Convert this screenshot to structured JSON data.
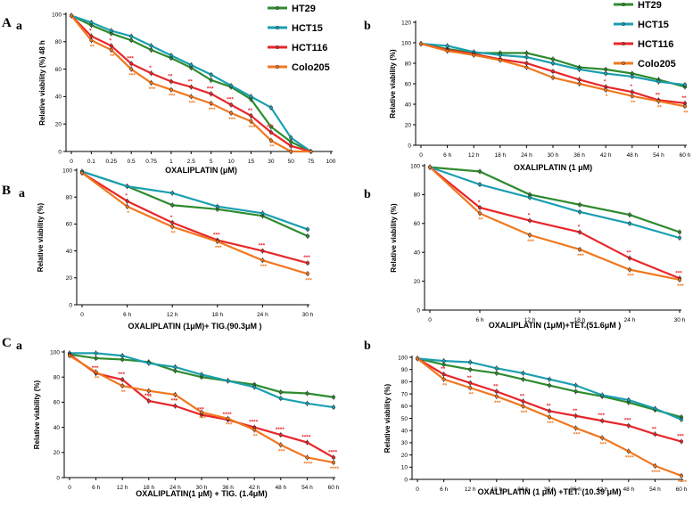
{
  "figure_labels": {
    "A": "A",
    "B": "B",
    "C": "C",
    "a": "a",
    "b": "b"
  },
  "colors": {
    "HT29": "#2e8b2e",
    "HCT15": "#1a9fb0",
    "HCT116": "#e8262a",
    "Colo205": "#f07820"
  },
  "chart_data": [
    {
      "id": "Aa",
      "type": "line",
      "title": "",
      "xlabel": "OXALIPLATIN (μM)",
      "ylabel": "Relative viability (%) 48 h",
      "categories": [
        "0",
        "0.1",
        "0.25",
        "0.5",
        "0.75",
        "1",
        "2.5",
        "5",
        "10",
        "15",
        "30",
        "50",
        "75",
        "100"
      ],
      "ylim": [
        0,
        100
      ],
      "yticks": [
        0,
        20,
        40,
        60,
        80,
        100
      ],
      "legend": [
        "HT29",
        "HCT15",
        "HCT116",
        "Colo205"
      ],
      "series": [
        {
          "name": "HT29",
          "values": [
            99,
            92,
            86,
            81,
            74,
            68,
            61,
            52,
            47,
            38,
            18,
            7,
            0,
            null
          ]
        },
        {
          "name": "HCT15",
          "values": [
            99,
            94,
            88,
            84,
            77,
            70,
            63,
            56,
            48,
            40,
            32,
            10,
            0,
            null
          ]
        },
        {
          "name": "HCT116",
          "values": [
            99,
            84,
            77,
            64,
            57,
            51,
            47,
            42,
            34,
            26,
            14,
            4,
            0,
            null
          ]
        },
        {
          "name": "Colo205",
          "values": [
            99,
            81,
            74,
            60,
            50,
            45,
            40,
            35,
            28,
            22,
            8,
            0,
            0,
            null
          ]
        }
      ],
      "annotations": [
        {
          "series": "HCT116",
          "index": 1,
          "text": "*"
        },
        {
          "series": "Colo205",
          "index": 1,
          "text": "**"
        },
        {
          "series": "HCT116",
          "index": 2,
          "text": "*"
        },
        {
          "series": "Colo205",
          "index": 2,
          "text": "**"
        },
        {
          "series": "HCT116",
          "index": 3,
          "text": "***"
        },
        {
          "series": "Colo205",
          "index": 3,
          "text": "***"
        },
        {
          "series": "HCT116",
          "index": 4,
          "text": "*"
        },
        {
          "series": "Colo205",
          "index": 4,
          "text": "***"
        },
        {
          "series": "HCT116",
          "index": 5,
          "text": "**"
        },
        {
          "series": "Colo205",
          "index": 5,
          "text": "***"
        },
        {
          "series": "HCT116",
          "index": 6,
          "text": "**"
        },
        {
          "series": "Colo205",
          "index": 6,
          "text": "***"
        },
        {
          "series": "HCT116",
          "index": 7,
          "text": "***"
        },
        {
          "series": "Colo205",
          "index": 7,
          "text": "***"
        },
        {
          "series": "HCT116",
          "index": 8,
          "text": "***"
        },
        {
          "series": "Colo205",
          "index": 8,
          "text": "***"
        },
        {
          "series": "HCT116",
          "index": 9,
          "text": "**"
        },
        {
          "series": "Colo205",
          "index": 9,
          "text": "***"
        },
        {
          "series": "HCT116",
          "index": 10,
          "text": "***"
        },
        {
          "series": "Colo205",
          "index": 10,
          "text": "**"
        }
      ]
    },
    {
      "id": "Ab",
      "type": "line",
      "title": "",
      "xlabel": "OXALIPLATIN (1 μM)",
      "ylabel": "Relative viability (%)",
      "categories": [
        "0",
        "6 h",
        "12 h",
        "18 h",
        "24 h",
        "30 h",
        "36 h",
        "42 h",
        "48 h",
        "54 h",
        "60 h"
      ],
      "ylim": [
        0,
        120
      ],
      "yticks": [
        0,
        20,
        40,
        60,
        80,
        100,
        120
      ],
      "legend": [
        "HT29",
        "HCT15",
        "HCT116",
        "Colo205"
      ],
      "series": [
        {
          "name": "HT29",
          "values": [
            99,
            94,
            90,
            90,
            90,
            84,
            76,
            74,
            70,
            64,
            57
          ]
        },
        {
          "name": "HCT15",
          "values": [
            99,
            97,
            91,
            88,
            86,
            80,
            74,
            70,
            67,
            62,
            59
          ]
        },
        {
          "name": "HCT116",
          "values": [
            99,
            93,
            89,
            84,
            80,
            72,
            64,
            57,
            52,
            44,
            41
          ]
        },
        {
          "name": "Colo205",
          "values": [
            99,
            92,
            88,
            83,
            76,
            66,
            60,
            54,
            48,
            43,
            38
          ]
        }
      ],
      "annotations": [
        {
          "series": "HCT116",
          "index": 7,
          "text": "*"
        },
        {
          "series": "Colo205",
          "index": 7,
          "text": "*"
        },
        {
          "series": "HCT116",
          "index": 8,
          "text": "*"
        },
        {
          "series": "Colo205",
          "index": 8,
          "text": "**"
        },
        {
          "series": "HCT116",
          "index": 9,
          "text": "**"
        },
        {
          "series": "Colo205",
          "index": 9,
          "text": "**"
        },
        {
          "series": "HCT116",
          "index": 10,
          "text": "**"
        },
        {
          "series": "Colo205",
          "index": 10,
          "text": "**"
        }
      ]
    },
    {
      "id": "Ba",
      "type": "line",
      "title": "",
      "xlabel": "OXALIPLATIN (1μM)+ TIG.(90.3μM )",
      "ylabel": "Relative viability (%)",
      "categories": [
        "0",
        "6 h",
        "12 h",
        "18 h",
        "24 h",
        "30 h"
      ],
      "ylim": [
        0,
        100
      ],
      "yticks": [
        0,
        20,
        40,
        60,
        80,
        100
      ],
      "legend": [],
      "series": [
        {
          "name": "HT29",
          "values": [
            99,
            88,
            74,
            71,
            66,
            51
          ]
        },
        {
          "name": "HCT15",
          "values": [
            99,
            88,
            83,
            73,
            68,
            56
          ]
        },
        {
          "name": "HCT116",
          "values": [
            98,
            77,
            61,
            48,
            40,
            31
          ]
        },
        {
          "name": "Colo205",
          "values": [
            98,
            73,
            58,
            47,
            33,
            23
          ]
        }
      ],
      "annotations": [
        {
          "series": "HCT116",
          "index": 1,
          "text": "*"
        },
        {
          "series": "Colo205",
          "index": 1,
          "text": "*"
        },
        {
          "series": "HCT116",
          "index": 2,
          "text": "*"
        },
        {
          "series": "Colo205",
          "index": 2,
          "text": "**"
        },
        {
          "series": "HCT116",
          "index": 3,
          "text": "***"
        },
        {
          "series": "Colo205",
          "index": 3,
          "text": "***"
        },
        {
          "series": "HCT116",
          "index": 4,
          "text": "***"
        },
        {
          "series": "Colo205",
          "index": 4,
          "text": "***"
        },
        {
          "series": "HCT116",
          "index": 5,
          "text": "***"
        },
        {
          "series": "Colo205",
          "index": 5,
          "text": "***"
        }
      ]
    },
    {
      "id": "Bb",
      "type": "line",
      "title": "",
      "xlabel": "OXALIPLATIN (1μM)+TET.(51.6μM )",
      "ylabel": "Relative viability (%)",
      "categories": [
        "0",
        "6 h",
        "12 h",
        "18 h",
        "24 h",
        "30 h"
      ],
      "ylim": [
        0,
        100
      ],
      "yticks": [
        0,
        20,
        40,
        60,
        80,
        100
      ],
      "legend": [],
      "series": [
        {
          "name": "HT29",
          "values": [
            99,
            96,
            80,
            73,
            66,
            54
          ]
        },
        {
          "name": "HCT15",
          "values": [
            99,
            87,
            78,
            68,
            60,
            50
          ]
        },
        {
          "name": "HCT116",
          "values": [
            99,
            71,
            62,
            54,
            36,
            22
          ]
        },
        {
          "name": "Colo205",
          "values": [
            99,
            67,
            52,
            42,
            28,
            21
          ]
        }
      ],
      "annotations": [
        {
          "series": "HCT116",
          "index": 1,
          "text": "*"
        },
        {
          "series": "Colo205",
          "index": 1,
          "text": "**"
        },
        {
          "series": "HCT116",
          "index": 2,
          "text": "*"
        },
        {
          "series": "Colo205",
          "index": 2,
          "text": "***"
        },
        {
          "series": "HCT116",
          "index": 3,
          "text": "*"
        },
        {
          "series": "Colo205",
          "index": 3,
          "text": "***"
        },
        {
          "series": "HCT116",
          "index": 4,
          "text": "**"
        },
        {
          "series": "Colo205",
          "index": 4,
          "text": "***"
        },
        {
          "series": "HCT116",
          "index": 5,
          "text": "***"
        },
        {
          "series": "Colo205",
          "index": 5,
          "text": "***"
        }
      ]
    },
    {
      "id": "Ca",
      "type": "line",
      "title": "",
      "xlabel": "OXALIPLATIN(1 μM) + TIG. (1.4μM)",
      "ylabel": "Relative viability (%)",
      "categories": [
        "0",
        "6 h",
        "12 h",
        "18 h",
        "24 h",
        "30 h",
        "36 h",
        "42 h",
        "48 h",
        "54 h",
        "60 h"
      ],
      "ylim": [
        0,
        100
      ],
      "yticks": [
        0,
        20,
        40,
        60,
        80,
        100
      ],
      "legend": [],
      "series": [
        {
          "name": "HT29",
          "values": [
            98,
            95,
            94,
            92,
            85,
            80,
            77,
            74,
            68,
            67,
            64
          ]
        },
        {
          "name": "HCT15",
          "values": [
            99,
            99,
            97,
            91,
            88,
            82,
            77,
            72,
            63,
            59,
            56
          ]
        },
        {
          "name": "HCT116",
          "values": [
            98,
            83,
            78,
            61,
            57,
            50,
            46,
            40,
            34,
            28,
            16
          ]
        },
        {
          "name": "Colo205",
          "values": [
            97,
            84,
            73,
            69,
            66,
            52,
            47,
            38,
            26,
            16,
            12
          ]
        }
      ],
      "annotations": [
        {
          "series": "Colo205",
          "index": 1,
          "text": "**"
        },
        {
          "series": "HCT116",
          "index": 1,
          "text": "***"
        },
        {
          "series": "HCT116",
          "index": 2,
          "text": "***"
        },
        {
          "series": "Colo205",
          "index": 2,
          "text": "**"
        },
        {
          "series": "Colo205",
          "index": 3,
          "text": "**"
        },
        {
          "series": "HCT116",
          "index": 3,
          "text": "***"
        },
        {
          "series": "Colo205",
          "index": 4,
          "text": "*"
        },
        {
          "series": "HCT116",
          "index": 4,
          "text": "***"
        },
        {
          "series": "Colo205",
          "index": 5,
          "text": "***"
        },
        {
          "series": "HCT116",
          "index": 5,
          "text": "***"
        },
        {
          "series": "HCT116",
          "index": 6,
          "text": "****"
        },
        {
          "series": "Colo205",
          "index": 6,
          "text": "***"
        },
        {
          "series": "HCT116",
          "index": 7,
          "text": "****"
        },
        {
          "series": "Colo205",
          "index": 7,
          "text": "**"
        },
        {
          "series": "HCT116",
          "index": 8,
          "text": "****"
        },
        {
          "series": "Colo205",
          "index": 8,
          "text": "***"
        },
        {
          "series": "HCT116",
          "index": 9,
          "text": "****"
        },
        {
          "series": "Colo205",
          "index": 9,
          "text": "****"
        },
        {
          "series": "HCT116",
          "index": 10,
          "text": "****"
        },
        {
          "series": "Colo205",
          "index": 10,
          "text": "****"
        }
      ]
    },
    {
      "id": "Cb",
      "type": "line",
      "title": "",
      "xlabel": "OXALIPLATIN (1 μM) +TET. (10.39 μM)",
      "ylabel": "Relative viability (%)",
      "categories": [
        "0",
        "6 h",
        "12 h",
        "18 h",
        "24 h",
        "30 h",
        "36 h",
        "42 h",
        "48 h",
        "54 h",
        "60 h"
      ],
      "ylim": [
        0,
        100
      ],
      "yticks": [
        0,
        10,
        20,
        30,
        40,
        50,
        60,
        70,
        80,
        90,
        100
      ],
      "legend": [],
      "series": [
        {
          "name": "HT29",
          "values": [
            99,
            94,
            90,
            87,
            82,
            77,
            72,
            68,
            63,
            57,
            51
          ]
        },
        {
          "name": "HCT15",
          "values": [
            99,
            97,
            96,
            91,
            87,
            82,
            77,
            69,
            65,
            58,
            49
          ]
        },
        {
          "name": "HCT116",
          "values": [
            99,
            86,
            79,
            72,
            64,
            56,
            52,
            48,
            44,
            37,
            31
          ]
        },
        {
          "name": "Colo205",
          "values": [
            99,
            82,
            75,
            68,
            60,
            51,
            42,
            34,
            23,
            11,
            3
          ]
        }
      ],
      "annotations": [
        {
          "series": "HCT116",
          "index": 1,
          "text": "**"
        },
        {
          "series": "Colo205",
          "index": 1,
          "text": "**"
        },
        {
          "series": "HCT116",
          "index": 2,
          "text": "**"
        },
        {
          "series": "Colo205",
          "index": 2,
          "text": "**"
        },
        {
          "series": "HCT116",
          "index": 3,
          "text": "**"
        },
        {
          "series": "Colo205",
          "index": 3,
          "text": "***"
        },
        {
          "series": "HCT116",
          "index": 4,
          "text": "**"
        },
        {
          "series": "Colo205",
          "index": 4,
          "text": "***"
        },
        {
          "series": "HCT116",
          "index": 5,
          "text": "**"
        },
        {
          "series": "Colo205",
          "index": 5,
          "text": "***"
        },
        {
          "series": "HCT116",
          "index": 6,
          "text": "**"
        },
        {
          "series": "Colo205",
          "index": 6,
          "text": "***"
        },
        {
          "series": "HCT116",
          "index": 7,
          "text": "***"
        },
        {
          "series": "Colo205",
          "index": 7,
          "text": "***"
        },
        {
          "series": "HCT116",
          "index": 8,
          "text": "***"
        },
        {
          "series": "Colo205",
          "index": 8,
          "text": "****"
        },
        {
          "series": "HCT116",
          "index": 9,
          "text": "**"
        },
        {
          "series": "Colo205",
          "index": 9,
          "text": "****"
        },
        {
          "series": "HCT116",
          "index": 10,
          "text": "***"
        },
        {
          "series": "Colo205",
          "index": 10,
          "text": "****"
        }
      ]
    }
  ]
}
